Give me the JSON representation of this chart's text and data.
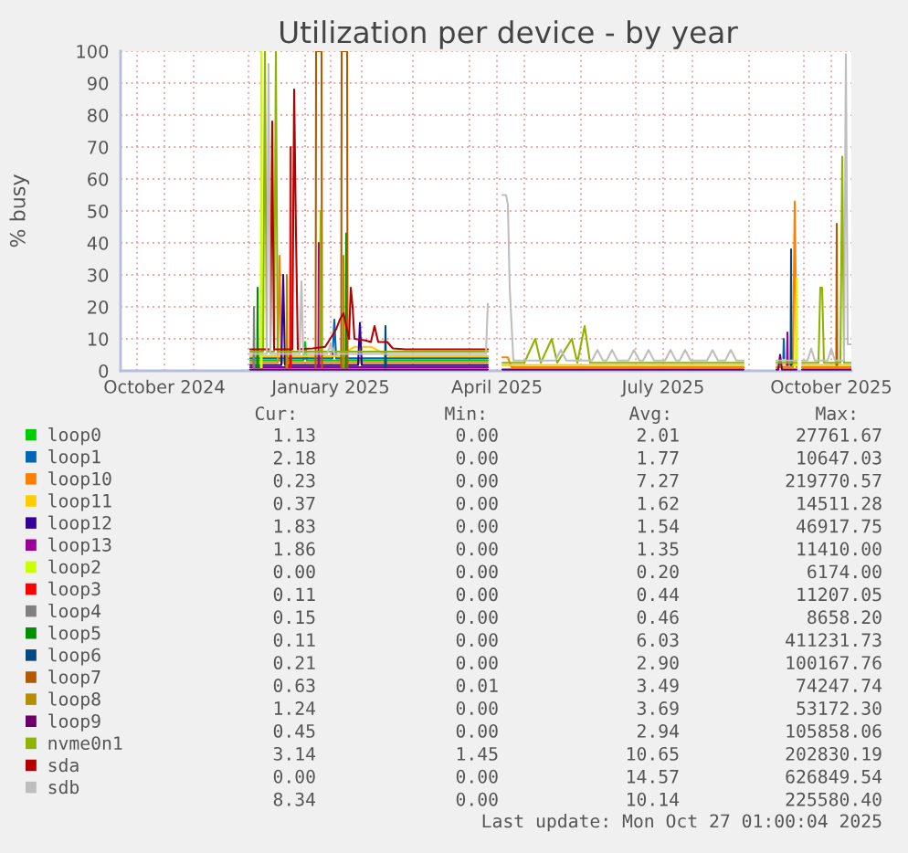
{
  "chart_data": {
    "type": "line",
    "title": "Utilization per device - by year",
    "ylabel": "% busy",
    "xlim": [
      "2024-09-22",
      "2025-10-27"
    ],
    "xticks": [
      {
        "value": "2024-10-01",
        "label": null
      },
      {
        "value": "2024-10-16",
        "label": "October 2024"
      },
      {
        "value": "2024-11-01",
        "label": null
      },
      {
        "value": "2024-12-01",
        "label": null
      },
      {
        "value": "2025-01-01",
        "label": null
      },
      {
        "value": "2025-01-15",
        "label": "January 2025"
      },
      {
        "value": "2025-02-01",
        "label": null
      },
      {
        "value": "2025-03-01",
        "label": null
      },
      {
        "value": "2025-04-01",
        "label": null
      },
      {
        "value": "2025-04-16",
        "label": "April 2025"
      },
      {
        "value": "2025-05-01",
        "label": null
      },
      {
        "value": "2025-06-01",
        "label": null
      },
      {
        "value": "2025-07-01",
        "label": null
      },
      {
        "value": "2025-07-16",
        "label": "July 2025"
      },
      {
        "value": "2025-08-01",
        "label": null
      },
      {
        "value": "2025-09-01",
        "label": null
      },
      {
        "value": "2025-10-01",
        "label": null
      },
      {
        "value": "2025-10-16",
        "label": "October 2025"
      }
    ],
    "ylim": [
      0,
      100
    ],
    "yticks": [
      0,
      10,
      20,
      30,
      40,
      50,
      60,
      70,
      80,
      90,
      100
    ],
    "grid": true,
    "legend": "bottom",
    "series": [
      {
        "name": "loop0",
        "color": "#00cc00",
        "x": [
          "2024-12-02",
          "2024-12-31",
          "2025-01-01",
          "2025-01-02",
          "2025-04-11"
        ],
        "values": [
          3.2,
          3.2,
          9,
          3.2,
          3.2
        ]
      },
      {
        "name": "loop1",
        "color": "#0066b3",
        "x": [
          "2024-12-02",
          "2025-01-16",
          "2025-01-17",
          "2025-01-18",
          "2025-04-11",
          "2025-06-01",
          "2025-09-19T18:00",
          "2025-09-20",
          "2025-09-20T06:00"
        ],
        "values": [
          3.9,
          3.9,
          16,
          3.9,
          3.9,
          null,
          3.9,
          10,
          3.9
        ]
      },
      {
        "name": "loop10",
        "color": "#ff8000",
        "x": [
          "2024-12-02",
          "2024-12-17",
          "2024-12-18",
          "2024-12-19",
          "2025-04-11",
          "2025-04-15",
          "2025-04-19",
          "2025-04-22",
          "2025-04-24",
          "2025-08-29",
          "2025-09-05",
          "2025-09-16",
          "2025-09-25",
          "2025-09-26",
          "2025-09-27",
          "2025-09-28",
          "2025-09-30",
          "2025-10-27"
        ],
        "values": [
          2.5,
          2.5,
          36,
          2.5,
          2.5,
          null,
          4.2,
          4.2,
          1.1,
          1.1,
          null,
          1.1,
          1.1,
          53,
          1.1,
          null,
          1.1,
          1.1
        ]
      },
      {
        "name": "loop11",
        "color": "#ffcc00",
        "x": [
          "2024-12-02",
          "2025-01-20",
          "2025-01-28",
          "2025-02-06",
          "2025-02-16",
          "2025-04-11",
          "2025-04-15",
          "2025-04-19",
          "2025-08-29",
          "2025-09-05",
          "2025-09-16",
          "2025-09-27",
          "2025-09-28",
          "2025-09-30",
          "2025-10-27"
        ],
        "values": [
          4.6,
          4.6,
          7.5,
          7.5,
          4.6,
          4.6,
          null,
          1.8,
          1.8,
          null,
          1.8,
          1.8,
          null,
          1.8,
          1.8
        ]
      },
      {
        "name": "loop12",
        "color": "#330099",
        "x": [
          "2024-12-02",
          "2024-12-19",
          "2024-12-20",
          "2024-12-21",
          "2025-01-30",
          "2025-01-31",
          "2025-02-01",
          "2025-04-11"
        ],
        "values": [
          1.8,
          1.8,
          30,
          1.8,
          1.8,
          15,
          1.8,
          1.8
        ]
      },
      {
        "name": "loop13",
        "color": "#990099",
        "x": [
          "2024-12-02",
          "2025-01-08T06:00",
          "2025-01-08T12:00",
          "2025-01-08T18:00",
          "2025-04-11",
          "2025-06-01",
          "2025-09-21T18:00",
          "2025-09-22",
          "2025-09-22T06:00"
        ],
        "values": [
          1.1,
          1.1,
          40,
          1.1,
          1.1,
          null,
          1.8,
          12,
          1.8
        ]
      },
      {
        "name": "loop2",
        "color": "#ccff00",
        "x": [
          "2024-12-07T18:00",
          "2024-12-08",
          "2024-12-08T06:00",
          "2025-06-01",
          "2025-09-26T18:00",
          "2025-09-27",
          "2025-09-27T06:00"
        ],
        "values": [
          1.1,
          100,
          1.1,
          null,
          1.8,
          29,
          1.8
        ]
      },
      {
        "name": "loop3",
        "color": "#ff0000",
        "x": [
          "2024-12-23T18:00",
          "2024-12-24",
          "2024-12-24T06:00"
        ],
        "values": [
          1.1,
          70,
          1.1
        ]
      },
      {
        "name": "loop4",
        "color": "#808080",
        "x": [
          "2024-12-03T18:00",
          "2024-12-04",
          "2024-12-04T06:00"
        ],
        "values": [
          1.1,
          20,
          1.1
        ]
      },
      {
        "name": "loop5",
        "color": "#008f00",
        "x": [
          "2024-12-05T18:00",
          "2024-12-06",
          "2024-12-06T06:00",
          "2025-01-01",
          "2025-01-23T06:00",
          "2025-01-23T12:00",
          "2025-01-23T18:00"
        ],
        "values": [
          1.1,
          26,
          1.1,
          null,
          1.1,
          43,
          1.1
        ]
      },
      {
        "name": "loop6",
        "color": "#00487d",
        "x": [
          "2025-02-13T18:00",
          "2025-02-14",
          "2025-02-14T06:00",
          "2025-06-01",
          "2025-09-23T18:00",
          "2025-09-24",
          "2025-09-24T06:00"
        ],
        "values": [
          1.1,
          14,
          1.1,
          null,
          1.8,
          38,
          1.8
        ]
      },
      {
        "name": "loop7",
        "color": "#b35a00",
        "x": [
          "2025-01-06T18:00",
          "2025-01-07",
          "2025-01-10",
          "2025-01-10T06:00",
          "2025-01-15",
          "2025-01-20T18:00",
          "2025-01-21",
          "2025-01-24",
          "2025-01-24T06:00",
          "2025-06-01",
          "2025-10-18T18:00",
          "2025-10-19",
          "2025-10-19T06:00"
        ],
        "values": [
          1.1,
          100,
          100,
          1.1,
          null,
          1.1,
          100,
          100,
          1.1,
          null,
          1.8,
          46,
          1.8
        ]
      },
      {
        "name": "loop8",
        "color": "#b38f00",
        "x": [
          "2024-12-21T18:00",
          "2024-12-22",
          "2024-12-22T06:00",
          "2025-01-01",
          "2025-01-21T18:00",
          "2025-01-22",
          "2025-01-22T06:00"
        ],
        "values": [
          1.1,
          30,
          1.1,
          null,
          1.1,
          36,
          1.1
        ]
      },
      {
        "name": "loop9",
        "color": "#6b006b",
        "x": [
          "2024-12-02",
          "2025-04-11",
          "2025-04-15",
          "2025-04-19",
          "2025-08-29",
          "2025-09-05",
          "2025-09-16",
          "2025-09-17",
          "2025-09-18",
          "2025-09-19",
          "2025-09-27",
          "2025-09-28",
          "2025-09-30",
          "2025-10-27"
        ],
        "values": [
          0.4,
          0.4,
          null,
          0.4,
          0.4,
          null,
          0.4,
          0.4,
          5,
          0.4,
          0.4,
          null,
          0.4,
          0.4
        ]
      },
      {
        "name": "nvme0n1",
        "color": "#8fb300",
        "x": [
          "2024-12-02",
          "2024-12-09",
          "2024-12-10",
          "2024-12-11",
          "2024-12-15",
          "2024-12-16",
          "2024-12-17",
          "2025-01-09",
          "2025-01-09T12:00",
          "2025-01-10",
          "2025-04-11",
          "2025-04-15",
          "2025-04-19",
          "2025-05-01",
          "2025-05-07",
          "2025-05-10",
          "2025-05-16",
          "2025-05-19",
          "2025-05-27",
          "2025-05-30",
          "2025-06-03",
          "2025-06-06",
          "2025-08-29",
          "2025-09-05",
          "2025-09-16",
          "2025-09-27",
          "2025-09-28",
          "2025-09-30",
          "2025-10-09",
          "2025-10-10",
          "2025-10-11",
          "2025-10-12",
          "2025-10-21",
          "2025-10-22",
          "2025-10-23",
          "2025-10-27"
        ],
        "values": [
          6,
          6,
          100,
          6,
          6,
          100,
          6,
          6,
          50,
          6,
          6,
          null,
          2.5,
          2.5,
          10,
          2.5,
          10,
          2.5,
          10,
          2.5,
          14,
          2.5,
          2.5,
          null,
          2.5,
          2.5,
          null,
          2.5,
          2.5,
          26,
          26,
          2.5,
          2.5,
          67,
          2.5,
          2.5
        ]
      },
      {
        "name": "sda",
        "color": "#b30000",
        "x": [
          "2024-12-02",
          "2024-12-13",
          "2024-12-14",
          "2024-12-15",
          "2024-12-25",
          "2024-12-26",
          "2024-12-27",
          "2024-12-28",
          "2025-01-05",
          "2025-01-12",
          "2025-01-18",
          "2025-01-20",
          "2025-01-22",
          "2025-01-25",
          "2025-01-26",
          "2025-01-27",
          "2025-01-28",
          "2025-02-03",
          "2025-02-06",
          "2025-02-08",
          "2025-02-10",
          "2025-02-15",
          "2025-02-18",
          "2025-02-25",
          "2025-04-11"
        ],
        "values": [
          6.7,
          6.7,
          78,
          6.7,
          6.7,
          88,
          43,
          6.7,
          7,
          7.5,
          13,
          16,
          18,
          10,
          26,
          20,
          10,
          9.5,
          9,
          14,
          9,
          9,
          7,
          6.7,
          6.7
        ]
      },
      {
        "name": "sdb",
        "color": "#bebebe",
        "x": [
          "2024-12-02",
          "2024-12-11",
          "2024-12-12",
          "2024-12-13",
          "2024-12-29",
          "2024-12-30",
          "2024-12-31",
          "2025-01-13",
          "2025-01-15",
          "2025-01-17",
          "2025-04-10",
          "2025-04-11",
          "2025-04-15",
          "2025-04-19",
          "2025-04-21",
          "2025-04-22",
          "2025-04-23",
          "2025-04-25",
          "2025-05-05",
          "2025-05-18",
          "2025-05-21",
          "2025-05-24",
          "2025-06-07",
          "2025-06-10",
          "2025-06-13",
          "2025-06-15",
          "2025-06-18",
          "2025-06-21",
          "2025-06-27",
          "2025-06-30",
          "2025-07-03",
          "2025-07-05",
          "2025-07-08",
          "2025-07-11",
          "2025-07-17",
          "2025-07-20",
          "2025-07-23",
          "2025-07-25",
          "2025-07-28",
          "2025-07-31",
          "2025-08-09",
          "2025-08-12",
          "2025-08-15",
          "2025-08-19",
          "2025-08-22",
          "2025-08-25",
          "2025-08-29",
          "2025-09-05",
          "2025-09-16",
          "2025-09-27",
          "2025-09-28",
          "2025-09-30",
          "2025-10-03",
          "2025-10-05",
          "2025-10-07",
          "2025-10-14",
          "2025-10-16",
          "2025-10-18",
          "2025-10-23",
          "2025-10-24",
          "2025-10-25",
          "2025-10-27"
        ],
        "values": [
          5.3,
          5.3,
          96,
          5.3,
          5.3,
          28,
          5.3,
          5.3,
          8.5,
          5.3,
          5.3,
          21,
          null,
          55,
          55,
          52,
          26,
          3.2,
          3.2,
          3.2,
          6.5,
          3.2,
          3.2,
          6.5,
          3.2,
          3.2,
          6.5,
          3.2,
          3.2,
          6.5,
          3.2,
          3.2,
          6.5,
          3.2,
          3.2,
          6.5,
          3.2,
          3.2,
          6.5,
          3.2,
          3.2,
          6.5,
          3.2,
          3.2,
          6.5,
          3.2,
          3.2,
          null,
          3.2,
          3.2,
          null,
          3.2,
          3.2,
          7,
          3.2,
          3.2,
          7,
          3.2,
          3.2,
          99,
          8.3,
          8.3
        ]
      }
    ],
    "annotations": [
      "Cur:",
      "Min:",
      "Avg:",
      "Max:",
      "1.13",
      "0.00",
      "2.01",
      "27761.67",
      "2.18",
      "0.00",
      "1.77",
      "10647.03",
      "0.23",
      "0.00",
      "7.27",
      "219770.57",
      "0.37",
      "0.00",
      "1.62",
      "14511.28",
      "1.83",
      "0.00",
      "1.54",
      "46917.75",
      "1.86",
      "0.00",
      "1.35",
      "11410.00",
      "0.00",
      "0.00",
      "0.20",
      "6174.00",
      "0.11",
      "0.00",
      "0.44",
      "11207.05",
      "0.15",
      "0.00",
      "0.46",
      "8658.20",
      "0.11",
      "0.00",
      "6.03",
      "411231.73",
      "0.21",
      "0.00",
      "2.90",
      "100167.76",
      "0.63",
      "0.01",
      "3.49",
      "74247.74",
      "1.24",
      "0.00",
      "3.69",
      "53172.30",
      "0.45",
      "0.00",
      "2.94",
      "105858.06",
      "3.14",
      "1.45",
      "10.65",
      "202830.19",
      "0.00",
      "0.00",
      "14.57",
      "626849.54",
      "8.34",
      "0.00",
      "10.14",
      "225580.40",
      "Last update: Mon Oct 27 01:00:04 2025"
    ]
  }
}
